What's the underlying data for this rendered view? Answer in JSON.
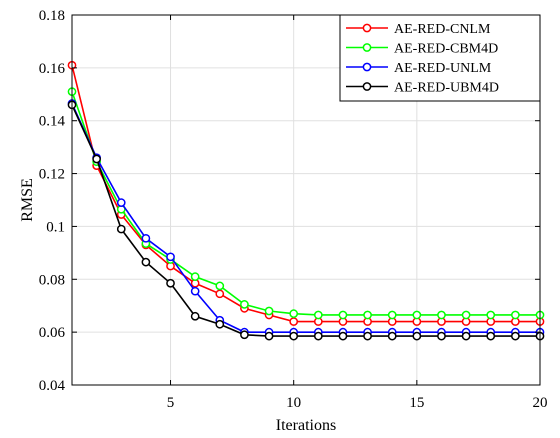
{
  "chart_data": {
    "type": "line",
    "xlabel": "Iterations",
    "ylabel": "RMSE",
    "xlim": [
      1,
      20
    ],
    "ylim": [
      0.04,
      0.18
    ],
    "x_ticks": [
      5,
      10,
      15,
      20
    ],
    "x_tick_labels": [
      "5",
      "10",
      "15",
      "20"
    ],
    "y_ticks": [
      0.04,
      0.06,
      0.08,
      0.1,
      0.12,
      0.14,
      0.16,
      0.18
    ],
    "y_tick_labels": [
      "0.04",
      "0.06",
      "0.08",
      "0.1",
      "0.12",
      "0.14",
      "0.16",
      "0.18"
    ],
    "grid": true,
    "legend_position": "top-right",
    "x": [
      1,
      2,
      3,
      4,
      5,
      6,
      7,
      8,
      9,
      10,
      11,
      12,
      13,
      14,
      15,
      16,
      17,
      18,
      19,
      20
    ],
    "series": [
      {
        "name": "AE-RED-CNLM",
        "color": "#ff0000",
        "values": [
          0.161,
          0.123,
          0.1045,
          0.093,
          0.085,
          0.0785,
          0.0745,
          0.069,
          0.0665,
          0.064,
          0.064,
          0.064,
          0.064,
          0.064,
          0.064,
          0.064,
          0.064,
          0.064,
          0.064,
          0.064
        ]
      },
      {
        "name": "AE-RED-CBM4D",
        "color": "#00ff00",
        "values": [
          0.151,
          0.1245,
          0.1065,
          0.0935,
          0.0875,
          0.081,
          0.0775,
          0.0705,
          0.068,
          0.067,
          0.0665,
          0.0665,
          0.0665,
          0.0665,
          0.0665,
          0.0665,
          0.0665,
          0.0665,
          0.0665,
          0.0665
        ]
      },
      {
        "name": "AE-RED-UNLM",
        "color": "#0000ff",
        "values": [
          0.1465,
          0.126,
          0.109,
          0.0955,
          0.0885,
          0.0755,
          0.0645,
          0.06,
          0.06,
          0.06,
          0.06,
          0.06,
          0.06,
          0.06,
          0.06,
          0.06,
          0.06,
          0.06,
          0.06,
          0.06
        ]
      },
      {
        "name": "AE-RED-UBM4D",
        "color": "#000000",
        "values": [
          0.146,
          0.1255,
          0.099,
          0.0865,
          0.0785,
          0.066,
          0.063,
          0.059,
          0.0585,
          0.0585,
          0.0585,
          0.0585,
          0.0585,
          0.0585,
          0.0585,
          0.0585,
          0.0585,
          0.0585,
          0.0585,
          0.0585
        ]
      }
    ]
  }
}
